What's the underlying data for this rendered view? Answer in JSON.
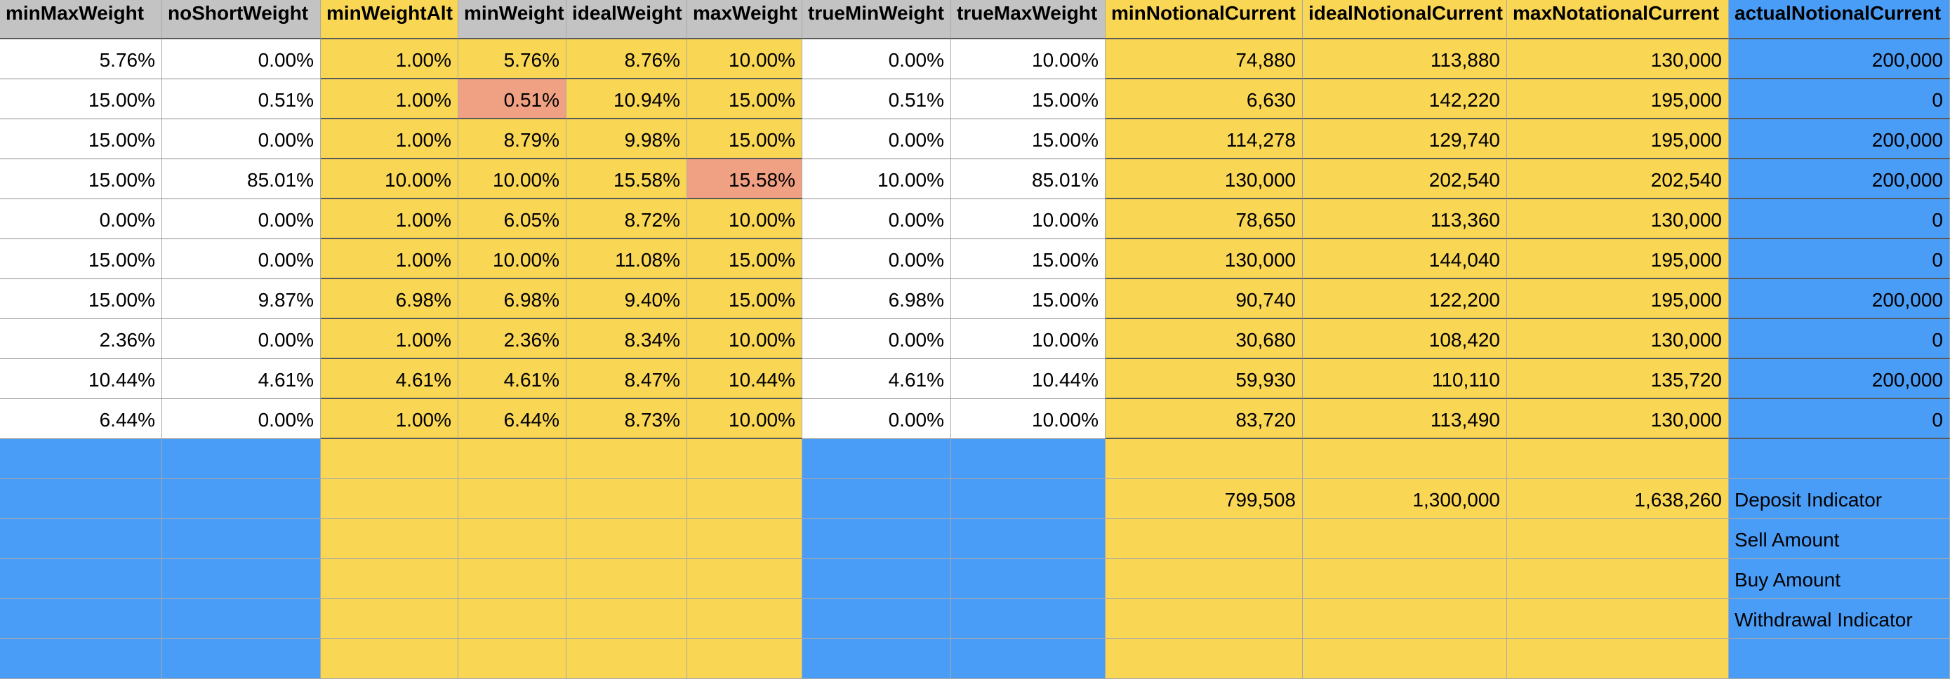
{
  "headers": [
    "minMaxWeight",
    "noShortWeight",
    "minWeightAlt",
    "minWeight",
    "idealWeight",
    "maxWeight",
    "trueMinWeight",
    "trueMaxWeight",
    "minNotionalCurrent",
    "idealNotionalCurrent",
    "maxNotationalCurrent",
    "actualNotionalCurrent"
  ],
  "rows": [
    [
      "5.76%",
      "0.00%",
      "1.00%",
      "5.76%",
      "8.76%",
      "10.00%",
      "0.00%",
      "10.00%",
      "74,880",
      "113,880",
      "130,000",
      "200,000"
    ],
    [
      "15.00%",
      "0.51%",
      "1.00%",
      "0.51%",
      "10.94%",
      "15.00%",
      "0.51%",
      "15.00%",
      "6,630",
      "142,220",
      "195,000",
      "0"
    ],
    [
      "15.00%",
      "0.00%",
      "1.00%",
      "8.79%",
      "9.98%",
      "15.00%",
      "0.00%",
      "15.00%",
      "114,278",
      "129,740",
      "195,000",
      "200,000"
    ],
    [
      "15.00%",
      "85.01%",
      "10.00%",
      "10.00%",
      "15.58%",
      "15.58%",
      "10.00%",
      "85.01%",
      "130,000",
      "202,540",
      "202,540",
      "200,000"
    ],
    [
      "0.00%",
      "0.00%",
      "1.00%",
      "6.05%",
      "8.72%",
      "10.00%",
      "0.00%",
      "10.00%",
      "78,650",
      "113,360",
      "130,000",
      "0"
    ],
    [
      "15.00%",
      "0.00%",
      "1.00%",
      "10.00%",
      "11.08%",
      "15.00%",
      "0.00%",
      "15.00%",
      "130,000",
      "144,040",
      "195,000",
      "0"
    ],
    [
      "15.00%",
      "9.87%",
      "6.98%",
      "6.98%",
      "9.40%",
      "15.00%",
      "6.98%",
      "15.00%",
      "90,740",
      "122,200",
      "195,000",
      "200,000"
    ],
    [
      "2.36%",
      "0.00%",
      "1.00%",
      "2.36%",
      "8.34%",
      "10.00%",
      "0.00%",
      "10.00%",
      "30,680",
      "108,420",
      "130,000",
      "0"
    ],
    [
      "10.44%",
      "4.61%",
      "4.61%",
      "4.61%",
      "8.47%",
      "10.44%",
      "4.61%",
      "10.44%",
      "59,930",
      "110,110",
      "135,720",
      "200,000"
    ],
    [
      "6.44%",
      "0.00%",
      "1.00%",
      "6.44%",
      "8.73%",
      "10.00%",
      "0.00%",
      "10.00%",
      "83,720",
      "113,490",
      "130,000",
      "0"
    ]
  ],
  "highlighted_cells": [
    {
      "row": 1,
      "col": 3,
      "color": "#f0a083"
    },
    {
      "row": 3,
      "col": 5,
      "color": "#f0a083"
    }
  ],
  "summary_rows": [
    [
      "",
      "",
      "",
      "",
      "",
      "",
      "",
      "",
      "",
      "",
      "",
      ""
    ],
    [
      "",
      "",
      "",
      "",
      "",
      "",
      "",
      "",
      "799,508",
      "1,300,000",
      "1,638,260",
      "Deposit Indicator"
    ],
    [
      "",
      "",
      "",
      "",
      "",
      "",
      "",
      "",
      "",
      "",
      "",
      "Sell Amount"
    ],
    [
      "",
      "",
      "",
      "",
      "",
      "",
      "",
      "",
      "",
      "",
      "",
      "Buy Amount"
    ],
    [
      "",
      "",
      "",
      "",
      "",
      "",
      "",
      "",
      "",
      "",
      "",
      "Withdrawal Indicator"
    ],
    [
      "",
      "",
      "",
      "",
      "",
      "",
      "",
      "",
      "",
      "",
      "",
      ""
    ]
  ],
  "colors": {
    "header_gray": "#c3c3c3",
    "yellow": "#f9d654",
    "blue": "#4a9df7",
    "highlight": "#f0a083",
    "white": "#ffffff",
    "accent_orange": "#e2a23a"
  }
}
